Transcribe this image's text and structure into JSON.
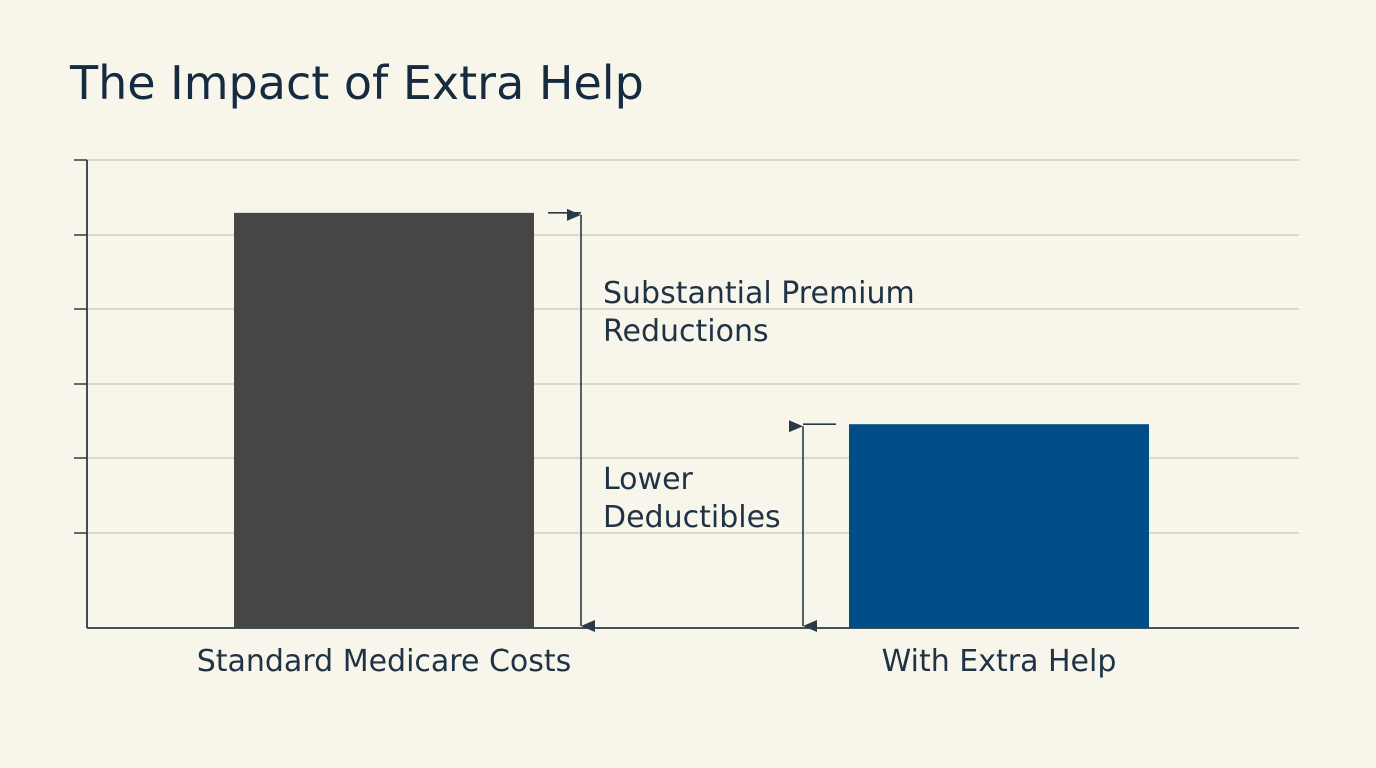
{
  "chart_data": {
    "type": "bar",
    "title": "The Impact of Extra Help",
    "categories": [
      "Standard Medicare Costs",
      "With Extra Help"
    ],
    "values": [
      5.5,
      2.7
    ],
    "ylim": [
      0,
      6.2
    ],
    "grid": true,
    "colors": [
      "#464646",
      "#004d87"
    ],
    "annotations": [
      {
        "text_lines": [
          "Substantial Premium",
          "Reductions"
        ],
        "applies_to": "Standard Medicare Costs",
        "value": 5.5
      },
      {
        "text_lines": [
          "Lower",
          "Deductibles"
        ],
        "applies_to": "With Extra Help",
        "value": 2.7
      }
    ]
  }
}
